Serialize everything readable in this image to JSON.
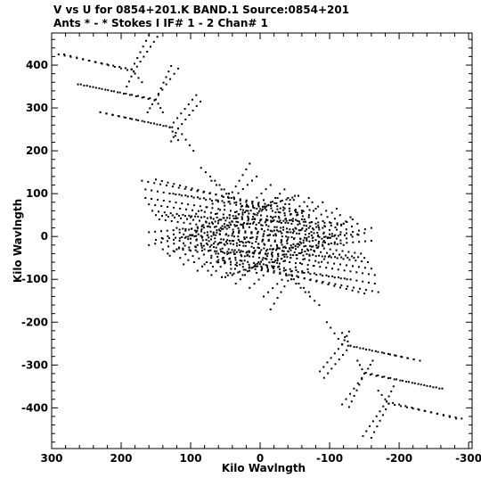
{
  "header": {
    "line1": "V vs U for 0854+201.K BAND.1   Source:0854+201",
    "line2": "Ants * - *     Stokes I  IF# 1 - 2  Chan# 1"
  },
  "chart_data": {
    "type": "scatter",
    "xlabel": "Kilo Wavlngth",
    "ylabel": "Kilo Wavlngth",
    "xlim": [
      300,
      -305
    ],
    "ylim": [
      -495,
      475
    ],
    "x_reversed": true,
    "xticks": [
      300,
      200,
      100,
      0,
      -100,
      -200,
      -300
    ],
    "yticks": [
      400,
      300,
      200,
      100,
      0,
      -100,
      -200,
      -300,
      -400
    ],
    "xtick_labels": [
      "300",
      "200",
      "100",
      "0",
      "-100",
      "-200",
      "-300"
    ],
    "ytick_labels": [
      "400",
      "300",
      "200",
      "100",
      "0",
      "-100",
      "-200",
      "-300",
      "-400"
    ],
    "grid": false,
    "marker_color": "#000000",
    "series": [
      {
        "tracks": [
          [
            [
              282,
              425
            ],
            [
              182,
              385
            ]
          ],
          [
            [
              182,
              385
            ],
            [
              148,
              466
            ]
          ],
          [
            [
              182,
              385
            ],
            [
              192,
              350
            ]
          ],
          [
            [
              258,
              355
            ],
            [
              152,
              318
            ]
          ],
          [
            [
              152,
              318
            ],
            [
              118,
              392
            ]
          ],
          [
            [
              152,
              318
            ],
            [
              162,
              290
            ]
          ],
          [
            [
              230,
              290
            ],
            [
              118,
              252
            ]
          ],
          [
            [
              118,
              252
            ],
            [
              86,
              315
            ]
          ],
          [
            [
              118,
              252
            ],
            [
              128,
              222
            ]
          ],
          [
            [
              118,
              252
            ],
            [
              96,
              200
            ]
          ],
          [
            [
              150,
              133
            ],
            [
              -6,
              70
            ]
          ],
          [
            [
              125,
              100
            ],
            [
              -60,
              55
            ]
          ],
          [
            [
              135,
              50
            ],
            [
              -120,
              30
            ]
          ],
          [
            [
              133,
              -40
            ],
            [
              -40,
              90
            ]
          ],
          [
            [
              120,
              20
            ],
            [
              -145,
              -40
            ]
          ],
          [
            [
              110,
              5
            ],
            [
              -150,
              -50
            ]
          ],
          [
            [
              100,
              -5
            ],
            [
              -155,
              -60
            ]
          ],
          [
            [
              90,
              -20
            ],
            [
              -160,
              -75
            ]
          ],
          [
            [
              80,
              -30
            ],
            [
              -165,
              -90
            ]
          ],
          [
            [
              70,
              -45
            ],
            [
              -165,
              -110
            ]
          ],
          [
            [
              60,
              -60
            ],
            [
              -170,
              -130
            ]
          ],
          [
            [
              150,
              -8
            ],
            [
              -55,
              95
            ]
          ],
          [
            [
              160,
              -20
            ],
            [
              -80,
              65
            ]
          ],
          [
            [
              40,
              -10
            ],
            [
              -120,
              30
            ]
          ],
          [
            [
              70,
              -20
            ],
            [
              -140,
              5
            ]
          ],
          [
            [
              60,
              -40
            ],
            [
              -160,
              -10
            ]
          ],
          [
            [
              -5,
              -140
            ],
            [
              -130,
              45
            ]
          ],
          [
            [
              15,
              -120
            ],
            [
              -110,
              65
            ]
          ],
          [
            [
              35,
              -110
            ],
            [
              -90,
              80
            ]
          ],
          [
            [
              55,
              -95
            ],
            [
              -70,
              90
            ]
          ],
          [
            [
              75,
              -80
            ],
            [
              -50,
              95
            ]
          ],
          [
            [
              95,
              -60
            ],
            [
              -25,
              90
            ]
          ],
          [
            [
              115,
              -50
            ],
            [
              -5,
              85
            ]
          ],
          [
            [
              140,
              -30
            ],
            [
              20,
              70
            ]
          ],
          [
            [
              -15,
              -170
            ],
            [
              -45,
              -90
            ]
          ],
          [
            [
              -45,
              -100
            ],
            [
              -85,
              -160
            ]
          ],
          [
            [
              -45,
              -100
            ],
            [
              -100,
              -45
            ]
          ],
          [
            [
              -20,
              -60
            ],
            [
              -70,
              -130
            ]
          ],
          [
            [
              -130,
              -255
            ],
            [
              -230,
              -290
            ]
          ],
          [
            [
              -130,
              -255
            ],
            [
              -92,
              -330
            ]
          ],
          [
            [
              -130,
              -255
            ],
            [
              -118,
              -225
            ]
          ],
          [
            [
              -150,
              -320
            ],
            [
              -262,
              -355
            ]
          ],
          [
            [
              -150,
              -320
            ],
            [
              -128,
              -398
            ]
          ],
          [
            [
              -150,
              -320
            ],
            [
              -140,
              -290
            ]
          ],
          [
            [
              -185,
              -390
            ],
            [
              -290,
              -425
            ]
          ],
          [
            [
              -185,
              -390
            ],
            [
              -160,
              -470
            ]
          ],
          [
            [
              -185,
              -390
            ],
            [
              -170,
              -360
            ]
          ]
        ]
      }
    ]
  }
}
